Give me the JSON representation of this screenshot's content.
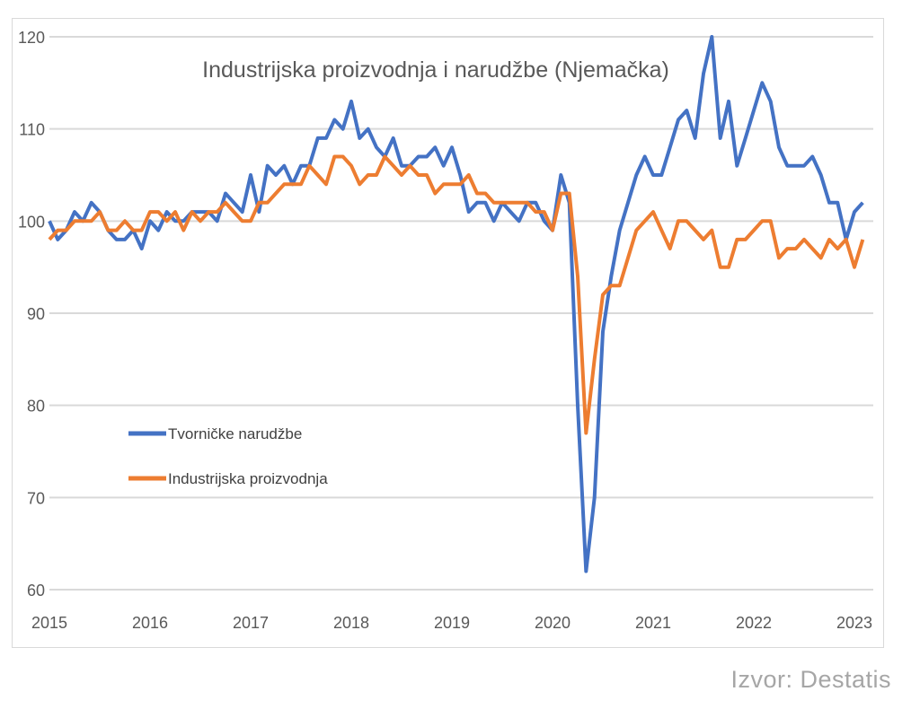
{
  "chart_data": {
    "type": "line",
    "title": "Industrijska proizvodnja i narudžbe (Njemačka)",
    "xlabel": "",
    "ylabel": "",
    "x_start": "2015-01",
    "x_frequency": "monthly",
    "x_ticks": [
      "2015",
      "2016",
      "2017",
      "2018",
      "2019",
      "2020",
      "2021",
      "2022",
      "2023"
    ],
    "y_ticks": [
      60,
      70,
      80,
      90,
      100,
      110,
      120
    ],
    "ylim": [
      60,
      120
    ],
    "grid": "horizontal",
    "legend_position": "center-left",
    "series": [
      {
        "name": "Tvorničke narudžbe",
        "color": "#4472c4",
        "values": [
          100,
          98,
          99,
          101,
          100,
          102,
          101,
          99,
          98,
          98,
          99,
          97,
          100,
          99,
          101,
          100,
          100,
          101,
          101,
          101,
          100,
          103,
          102,
          101,
          105,
          101,
          106,
          105,
          106,
          104,
          106,
          106,
          109,
          109,
          111,
          110,
          113,
          109,
          110,
          108,
          107,
          109,
          106,
          106,
          107,
          107,
          108,
          106,
          108,
          105,
          101,
          102,
          102,
          100,
          102,
          101,
          100,
          102,
          102,
          100,
          99,
          105,
          102,
          80,
          62,
          70,
          88,
          94,
          99,
          102,
          105,
          107,
          105,
          105,
          108,
          111,
          112,
          109,
          116,
          120,
          109,
          113,
          106,
          109,
          112,
          115,
          113,
          108,
          106,
          106,
          106,
          107,
          105,
          102,
          102,
          98,
          101,
          102
        ]
      },
      {
        "name": "Industrijska proizvodnja",
        "color": "#ed7d31",
        "values": [
          98,
          99,
          99,
          100,
          100,
          100,
          101,
          99,
          99,
          100,
          99,
          99,
          101,
          101,
          100,
          101,
          99,
          101,
          100,
          101,
          101,
          102,
          101,
          100,
          100,
          102,
          102,
          103,
          104,
          104,
          104,
          106,
          105,
          104,
          107,
          107,
          106,
          104,
          105,
          105,
          107,
          106,
          105,
          106,
          105,
          105,
          103,
          104,
          104,
          104,
          105,
          103,
          103,
          102,
          102,
          102,
          102,
          102,
          101,
          101,
          99,
          103,
          103,
          94,
          77,
          85,
          92,
          93,
          93,
          96,
          99,
          100,
          101,
          99,
          97,
          100,
          100,
          99,
          98,
          99,
          95,
          95,
          98,
          98,
          99,
          100,
          100,
          96,
          97,
          97,
          98,
          97,
          96,
          98,
          97,
          98,
          95,
          98
        ]
      }
    ]
  },
  "source": "Izvor: Destatis"
}
